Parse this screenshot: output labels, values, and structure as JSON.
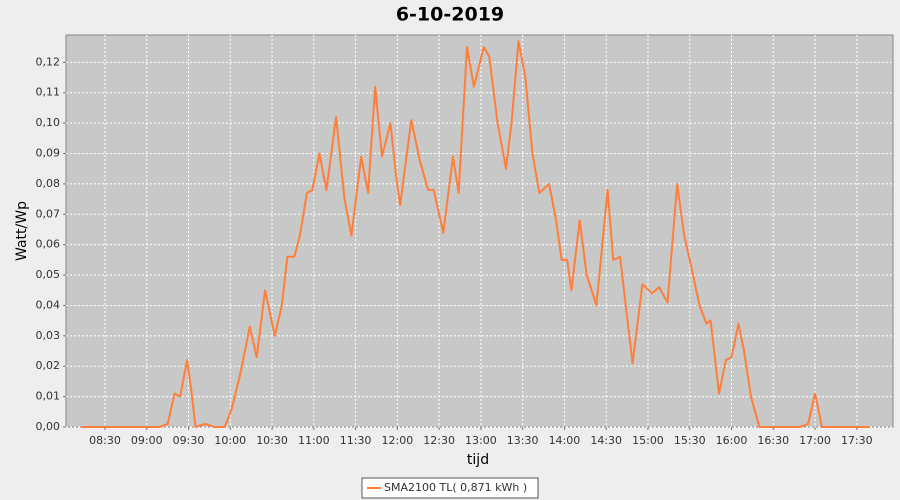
{
  "chart_data": {
    "type": "line",
    "title": "6-10-2019",
    "x_label": "tijd",
    "y_label": "Watt/Wp",
    "x": [
      "08:13",
      "09:09",
      "09:15",
      "09:20",
      "09:24",
      "09:29",
      "09:32",
      "09:35",
      "09:42",
      "09:49",
      "09:56",
      "10:01",
      "10:07",
      "10:14",
      "10:19",
      "10:25",
      "10:32",
      "10:37",
      "10:41",
      "10:46",
      "10:50",
      "10:55",
      "10:59",
      "11:04",
      "11:09",
      "11:16",
      "11:22",
      "11:27",
      "11:34",
      "11:39",
      "11:44",
      "11:49",
      "11:55",
      "11:59",
      "12:02",
      "12:10",
      "12:16",
      "12:22",
      "12:26",
      "12:33",
      "12:40",
      "12:44",
      "12:50",
      "12:55",
      "13:02",
      "13:06",
      "13:12",
      "13:18",
      "13:22",
      "13:27",
      "13:32",
      "13:37",
      "13:42",
      "13:49",
      "13:54",
      "13:58",
      "14:02",
      "14:05",
      "14:11",
      "14:16",
      "14:23",
      "14:31",
      "14:35",
      "14:40",
      "14:44",
      "14:49",
      "14:56",
      "15:03",
      "15:08",
      "15:14",
      "15:21",
      "15:26",
      "15:31",
      "15:37",
      "15:42",
      "15:45",
      "15:51",
      "15:56",
      "16:00",
      "16:05",
      "16:09",
      "16:14",
      "16:20",
      "16:49",
      "16:55",
      "17:00",
      "17:05",
      "17:39"
    ],
    "series": [
      {
        "name": "SMA2100 TL( 0,871 kWh )",
        "color": "#ff7f3a",
        "values": [
          0,
          0,
          0.001,
          0.011,
          0.01,
          0.022,
          0.012,
          0,
          0.001,
          0,
          0,
          0.006,
          0.017,
          0.033,
          0.023,
          0.045,
          0.03,
          0.04,
          0.056,
          0.056,
          0.063,
          0.077,
          0.078,
          0.09,
          0.078,
          0.102,
          0.075,
          0.063,
          0.089,
          0.077,
          0.112,
          0.089,
          0.1,
          0.083,
          0.073,
          0.101,
          0.088,
          0.078,
          0.078,
          0.064,
          0.089,
          0.077,
          0.125,
          0.112,
          0.125,
          0.122,
          0.1,
          0.085,
          0.1,
          0.127,
          0.115,
          0.09,
          0.077,
          0.08,
          0.068,
          0.055,
          0.055,
          0.045,
          0.068,
          0.05,
          0.04,
          0.078,
          0.055,
          0.056,
          0.04,
          0.021,
          0.047,
          0.044,
          0.046,
          0.041,
          0.08,
          0.063,
          0.053,
          0.04,
          0.034,
          0.035,
          0.011,
          0.022,
          0.023,
          0.034,
          0.025,
          0.01,
          0,
          0,
          0.001,
          0.011,
          0,
          0
        ]
      }
    ],
    "xlim": [
      "08:02",
      "17:56"
    ],
    "xticks": [
      "08:30",
      "09:00",
      "09:30",
      "10:00",
      "10:30",
      "11:00",
      "11:30",
      "12:00",
      "12:30",
      "13:00",
      "13:30",
      "14:00",
      "14:30",
      "15:00",
      "15:30",
      "16:00",
      "16:30",
      "17:00",
      "17:30"
    ],
    "ylim": [
      0,
      0.129
    ],
    "yticks": [
      {
        "value": 0,
        "label": "0,00"
      },
      {
        "value": 0.01,
        "label": "0,01"
      },
      {
        "value": 0.02,
        "label": "0,02"
      },
      {
        "value": 0.03,
        "label": "0,03"
      },
      {
        "value": 0.04,
        "label": "0,04"
      },
      {
        "value": 0.05,
        "label": "0,05"
      },
      {
        "value": 0.06,
        "label": "0,06"
      },
      {
        "value": 0.07,
        "label": "0,07"
      },
      {
        "value": 0.08,
        "label": "0,08"
      },
      {
        "value": 0.09,
        "label": "0,09"
      },
      {
        "value": 0.1,
        "label": "0,10"
      },
      {
        "value": 0.11,
        "label": "0,11"
      },
      {
        "value": 0.12,
        "label": "0,12"
      }
    ],
    "grid": true
  }
}
